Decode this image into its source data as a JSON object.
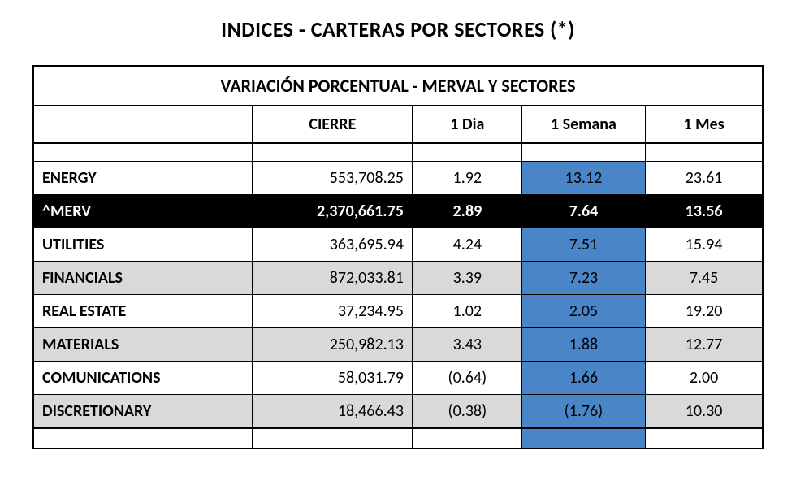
{
  "page_title": "INDICES - CARTERAS POR SECTORES (*)",
  "table_title": "VARIACIÓN PORCENTUAL - MERVAL Y SECTORES",
  "columns": {
    "name": "",
    "cierre": "CIERRE",
    "dia": "1 Dia",
    "semana": "1 Semana",
    "mes": "1 Mes"
  },
  "colors": {
    "bg_white": "#ffffff",
    "bg_gray": "#d9d9d9",
    "bg_blue": "#4a86c7",
    "bg_black": "#000000",
    "text_black": "#000000",
    "text_white": "#ffffff"
  },
  "fonts": {
    "title_size_pt": 20,
    "table_title_size_pt": 16,
    "header_size_pt": 15,
    "cell_size_pt": 15,
    "title_weight": "bold",
    "name_weight": "bold"
  },
  "rows": [
    {
      "name": "ENERGY",
      "cierre": "553,708.25",
      "dia": "1.92",
      "semana": "13.12",
      "mes": "23.61",
      "row_bg": "#ffffff",
      "semana_bg": "#4a86c7",
      "is_merv": false
    },
    {
      "name": "^MERV",
      "cierre": "2,370,661.75",
      "dia": "2.89",
      "semana": "7.64",
      "mes": "13.56",
      "row_bg": "#000000",
      "semana_bg": "#000000",
      "is_merv": true
    },
    {
      "name": "UTILITIES",
      "cierre": "363,695.94",
      "dia": "4.24",
      "semana": "7.51",
      "mes": "15.94",
      "row_bg": "#ffffff",
      "semana_bg": "#4a86c7",
      "is_merv": false
    },
    {
      "name": "FINANCIALS",
      "cierre": "872,033.81",
      "dia": "3.39",
      "semana": "7.23",
      "mes": "7.45",
      "row_bg": "#d9d9d9",
      "semana_bg": "#4a86c7",
      "is_merv": false
    },
    {
      "name": "REAL ESTATE",
      "cierre": "37,234.95",
      "dia": "1.02",
      "semana": "2.05",
      "mes": "19.20",
      "row_bg": "#ffffff",
      "semana_bg": "#4a86c7",
      "is_merv": false
    },
    {
      "name": "MATERIALS",
      "cierre": "250,982.13",
      "dia": "3.43",
      "semana": "1.88",
      "mes": "12.77",
      "row_bg": "#d9d9d9",
      "semana_bg": "#4a86c7",
      "is_merv": false
    },
    {
      "name": "COMUNICATIONS",
      "cierre": "58,031.79",
      "dia": "(0.64)",
      "semana": "1.66",
      "mes": "2.00",
      "row_bg": "#ffffff",
      "semana_bg": "#4a86c7",
      "is_merv": false
    },
    {
      "name": "DISCRETIONARY",
      "cierre": "18,466.43",
      "dia": "(0.38)",
      "semana": "(1.76)",
      "mes": "10.30",
      "row_bg": "#d9d9d9",
      "semana_bg": "#4a86c7",
      "is_merv": false
    }
  ],
  "tail": {
    "semana_bg": "#4a86c7"
  }
}
